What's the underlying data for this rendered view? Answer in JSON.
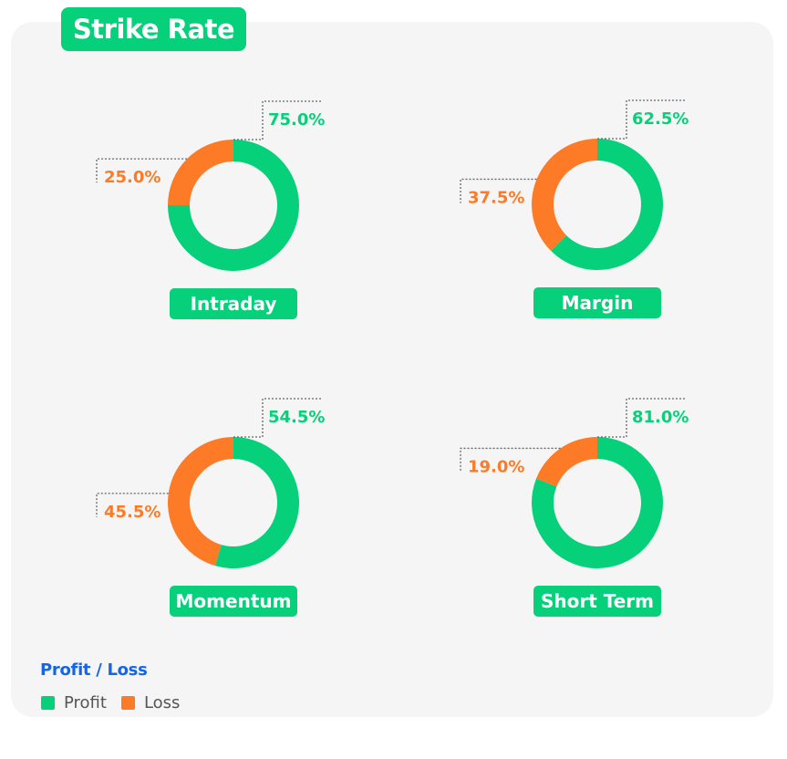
{
  "title": "Strike Rate",
  "colors": {
    "profit": "#06d17a",
    "loss": "#fd7a26",
    "leader": "#666666"
  },
  "legend": {
    "title": "Profit / Loss",
    "items": [
      {
        "name": "Profit",
        "color": "#06d17a"
      },
      {
        "name": "Loss",
        "color": "#fd7a26"
      }
    ]
  },
  "chart_data": [
    {
      "type": "pie",
      "title": "Intraday",
      "categories": [
        "Profit",
        "Loss"
      ],
      "values": [
        75.0,
        25.0
      ],
      "labels": [
        "75.0%",
        "25.0%"
      ],
      "legend": "bottom-left"
    },
    {
      "type": "pie",
      "title": "Margin",
      "categories": [
        "Profit",
        "Loss"
      ],
      "values": [
        62.5,
        37.5
      ],
      "labels": [
        "62.5%",
        "37.5%"
      ],
      "legend": "bottom-left"
    },
    {
      "type": "pie",
      "title": "Momentum",
      "categories": [
        "Profit",
        "Loss"
      ],
      "values": [
        54.5,
        45.5
      ],
      "labels": [
        "54.5%",
        "45.5%"
      ],
      "legend": "bottom-left"
    },
    {
      "type": "pie",
      "title": "Short Term",
      "categories": [
        "Profit",
        "Loss"
      ],
      "values": [
        81.0,
        19.0
      ],
      "labels": [
        "81.0%",
        "19.0%"
      ],
      "legend": "bottom-left"
    }
  ]
}
